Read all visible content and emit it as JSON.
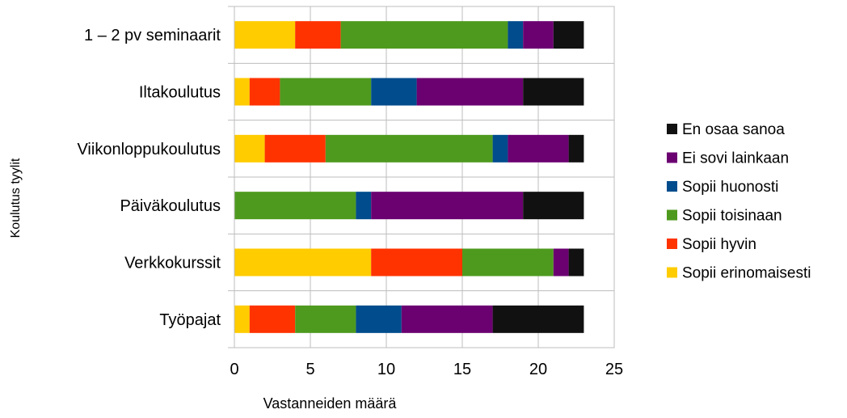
{
  "chart_data": {
    "type": "bar",
    "orientation": "horizontal",
    "stacked": true,
    "title": "",
    "xlabel": "Vastanneiden määrä",
    "ylabel": "Koulutus tyylit",
    "xlim": [
      0,
      25
    ],
    "xticks": [
      0,
      5,
      10,
      15,
      20,
      25
    ],
    "grid": true,
    "legend_position": "right",
    "categories": [
      "1 – 2 pv seminaarit",
      "Iltakoulutus",
      "Viikonloppukoulutus",
      "Päiväkoulutus",
      "Verkkokurssit",
      "Työpajat"
    ],
    "series": [
      {
        "name": "Sopii erinomaisesti",
        "color": "#FFCC00",
        "values": [
          4,
          1,
          2,
          0,
          9,
          1
        ]
      },
      {
        "name": "Sopii hyvin",
        "color": "#FF3300",
        "values": [
          3,
          2,
          4,
          0,
          6,
          3
        ]
      },
      {
        "name": "Sopii toisinaan",
        "color": "#4E9A1E",
        "values": [
          11,
          6,
          11,
          8,
          6,
          4
        ]
      },
      {
        "name": "Sopii huonosti",
        "color": "#004C8C",
        "values": [
          1,
          3,
          1,
          1,
          0,
          3
        ]
      },
      {
        "name": "Ei sovi lainkaan",
        "color": "#6B0071",
        "values": [
          2,
          7,
          4,
          10,
          1,
          6
        ]
      },
      {
        "name": "En osaa sanoa",
        "color": "#111111",
        "values": [
          2,
          4,
          1,
          4,
          1,
          6
        ]
      }
    ]
  }
}
